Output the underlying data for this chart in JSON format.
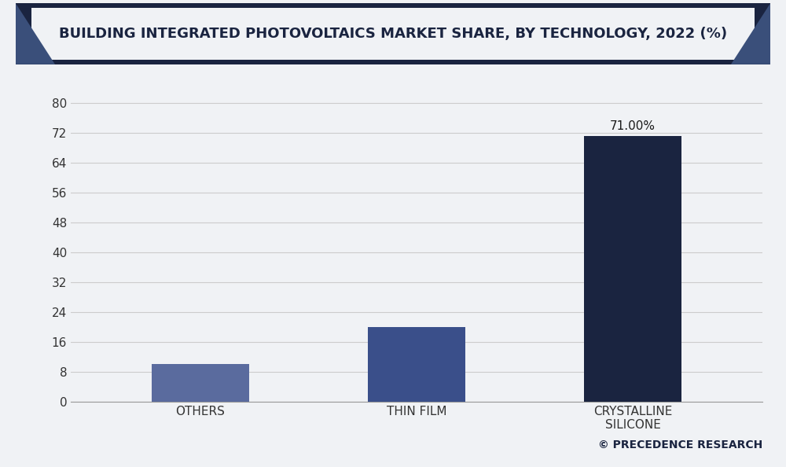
{
  "title": "BUILDING INTEGRATED PHOTOVOLTAICS MARKET SHARE, BY TECHNOLOGY, 2022 (%)",
  "categories": [
    "OTHERS",
    "THIN FILM",
    "CRYSTALLINE\nSILICONE"
  ],
  "values": [
    10,
    20,
    71
  ],
  "bar_colors": [
    "#5a6b9e",
    "#3a4f8a",
    "#1a2440"
  ],
  "annotation": "71.00%",
  "annotation_bar_index": 2,
  "yticks": [
    0,
    8,
    16,
    24,
    32,
    40,
    48,
    56,
    64,
    72,
    80
  ],
  "ylim": [
    0,
    85
  ],
  "background_color": "#f0f2f5",
  "plot_bg_color": "#f0f2f5",
  "title_bg_color": "#1a2440",
  "title_text_color": "#1a2440",
  "title_banner_bg": "#e8eaf0",
  "grid_color": "#cccccc",
  "watermark": "© PRECEDENCE RESEARCH",
  "title_fontsize": 13,
  "tick_fontsize": 11,
  "annotation_fontsize": 11,
  "watermark_fontsize": 10,
  "bar_width": 0.45
}
